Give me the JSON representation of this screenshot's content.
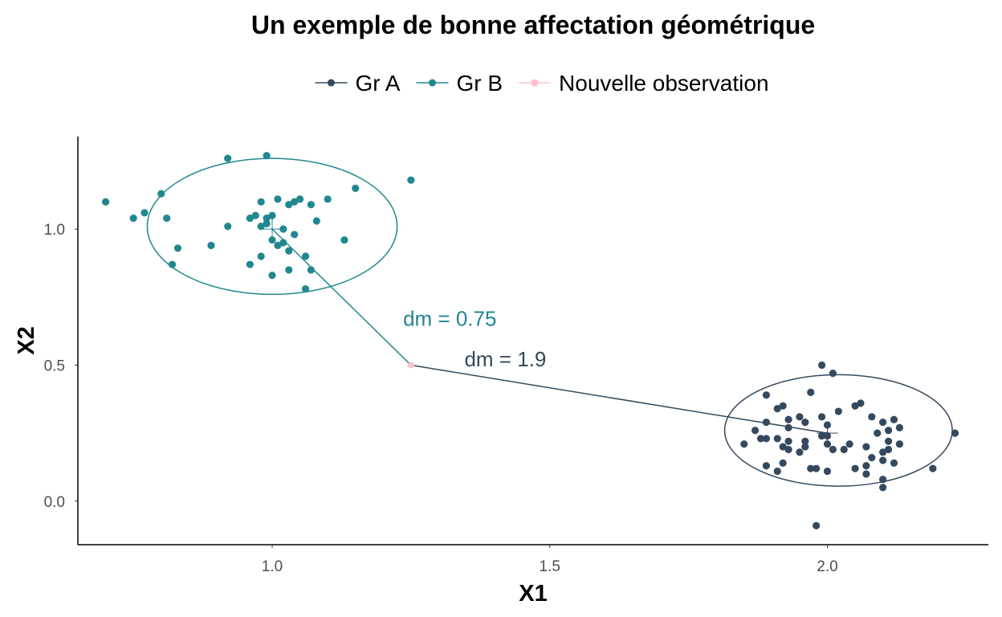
{
  "chart_data": {
    "type": "scatter",
    "title": "Un exemple de bonne affectation géométrique",
    "xlabel": "X1",
    "ylabel": "X2",
    "xlim": [
      0.65,
      2.29
    ],
    "ylim": [
      -0.16,
      1.34
    ],
    "x_ticks": [
      1.0,
      1.5,
      2.0
    ],
    "x_tick_labels": [
      "1.0",
      "1.5",
      "2.0"
    ],
    "y_ticks": [
      0.0,
      0.5,
      1.0
    ],
    "y_tick_labels": [
      "0.0",
      "0.5",
      "1.0"
    ],
    "grid": false,
    "legend_position": "top",
    "legend": [
      {
        "label": "Gr A",
        "color": "#34495e"
      },
      {
        "label": "Gr B",
        "color": "#21878f"
      },
      {
        "label": "Nouvelle observation",
        "color": "#ffc0cb"
      }
    ],
    "series": [
      {
        "name": "Gr A",
        "color": "#34495e",
        "centroid": [
          2.0,
          0.25
        ],
        "ellipse": {
          "cx": 2.02,
          "cy": 0.26,
          "rx": 0.205,
          "ry": 0.205
        },
        "points": [
          [
            1.99,
            0.5
          ],
          [
            2.01,
            0.47
          ],
          [
            1.97,
            0.4
          ],
          [
            1.89,
            0.39
          ],
          [
            2.06,
            0.36
          ],
          [
            2.05,
            0.35
          ],
          [
            1.92,
            0.35
          ],
          [
            1.91,
            0.34
          ],
          [
            2.02,
            0.33
          ],
          [
            1.95,
            0.31
          ],
          [
            1.99,
            0.31
          ],
          [
            2.08,
            0.31
          ],
          [
            2.12,
            0.3
          ],
          [
            1.93,
            0.3
          ],
          [
            1.96,
            0.29
          ],
          [
            2.1,
            0.29
          ],
          [
            1.89,
            0.29
          ],
          [
            2.0,
            0.28
          ],
          [
            1.93,
            0.27
          ],
          [
            2.13,
            0.27
          ],
          [
            1.87,
            0.26
          ],
          [
            2.11,
            0.26
          ],
          [
            2.09,
            0.25
          ],
          [
            2.23,
            0.25
          ],
          [
            2.0,
            0.24
          ],
          [
            1.99,
            0.24
          ],
          [
            1.91,
            0.23
          ],
          [
            1.88,
            0.23
          ],
          [
            2.11,
            0.22
          ],
          [
            1.96,
            0.22
          ],
          [
            1.89,
            0.23
          ],
          [
            1.93,
            0.22
          ],
          [
            2.0,
            0.21
          ],
          [
            1.85,
            0.21
          ],
          [
            2.07,
            0.2
          ],
          [
            2.13,
            0.21
          ],
          [
            2.04,
            0.21
          ],
          [
            1.92,
            0.2
          ],
          [
            1.96,
            0.2
          ],
          [
            2.03,
            0.19
          ],
          [
            2.11,
            0.19
          ],
          [
            2.01,
            0.19
          ],
          [
            2.1,
            0.18
          ],
          [
            1.95,
            0.18
          ],
          [
            1.93,
            0.19
          ],
          [
            2.08,
            0.16
          ],
          [
            2.1,
            0.15
          ],
          [
            1.92,
            0.14
          ],
          [
            2.12,
            0.14
          ],
          [
            1.89,
            0.13
          ],
          [
            2.07,
            0.13
          ],
          [
            2.19,
            0.12
          ],
          [
            1.97,
            0.12
          ],
          [
            2.05,
            0.12
          ],
          [
            1.98,
            0.12
          ],
          [
            2.0,
            0.11
          ],
          [
            1.91,
            0.11
          ],
          [
            2.07,
            0.1
          ],
          [
            2.1,
            0.08
          ],
          [
            2.1,
            0.05
          ],
          [
            1.98,
            -0.09
          ]
        ]
      },
      {
        "name": "Gr B",
        "color": "#21878f",
        "centroid": [
          1.0,
          1.0
        ],
        "ellipse": {
          "cx": 1.0,
          "cy": 1.01,
          "rx": 0.225,
          "ry": 0.25
        },
        "points": [
          [
            0.99,
            1.27
          ],
          [
            0.92,
            1.26
          ],
          [
            1.25,
            1.18
          ],
          [
            1.15,
            1.15
          ],
          [
            0.8,
            1.13
          ],
          [
            1.01,
            1.11
          ],
          [
            1.1,
            1.11
          ],
          [
            1.05,
            1.11
          ],
          [
            1.04,
            1.1
          ],
          [
            0.98,
            1.1
          ],
          [
            0.7,
            1.1
          ],
          [
            1.03,
            1.09
          ],
          [
            1.07,
            1.09
          ],
          [
            0.77,
            1.06
          ],
          [
            0.97,
            1.05
          ],
          [
            1.0,
            1.05
          ],
          [
            0.96,
            1.04
          ],
          [
            0.75,
            1.04
          ],
          [
            0.99,
            1.04
          ],
          [
            0.81,
            1.04
          ],
          [
            1.08,
            1.03
          ],
          [
            0.99,
            1.02
          ],
          [
            0.98,
            1.01
          ],
          [
            0.92,
            1.01
          ],
          [
            1.02,
            1.0
          ],
          [
            1.04,
            0.98
          ],
          [
            1.13,
            0.96
          ],
          [
            1.0,
            0.96
          ],
          [
            1.02,
            0.95
          ],
          [
            0.89,
            0.94
          ],
          [
            1.01,
            0.94
          ],
          [
            0.83,
            0.93
          ],
          [
            1.03,
            0.92
          ],
          [
            0.98,
            0.9
          ],
          [
            1.06,
            0.9
          ],
          [
            0.96,
            0.87
          ],
          [
            0.82,
            0.87
          ],
          [
            1.07,
            0.85
          ],
          [
            1.03,
            0.85
          ],
          [
            1.0,
            0.83
          ],
          [
            1.06,
            0.78
          ]
        ]
      },
      {
        "name": "Nouvelle observation",
        "color": "#ffc0cb",
        "points": [
          [
            1.25,
            0.5
          ]
        ]
      }
    ],
    "distance_lines": [
      {
        "from": [
          1.25,
          0.5
        ],
        "to": [
          1.0,
          1.0
        ],
        "color": "#21878f"
      },
      {
        "from": [
          1.25,
          0.5
        ],
        "to": [
          2.0,
          0.25
        ],
        "color": "#34495e"
      }
    ],
    "annotations": [
      {
        "text": "dm = 0.75",
        "x": 1.32,
        "y": 0.645,
        "color": "#21878f"
      },
      {
        "text": "dm = 1.9",
        "x": 1.42,
        "y": 0.495,
        "color": "#34495e"
      }
    ]
  }
}
